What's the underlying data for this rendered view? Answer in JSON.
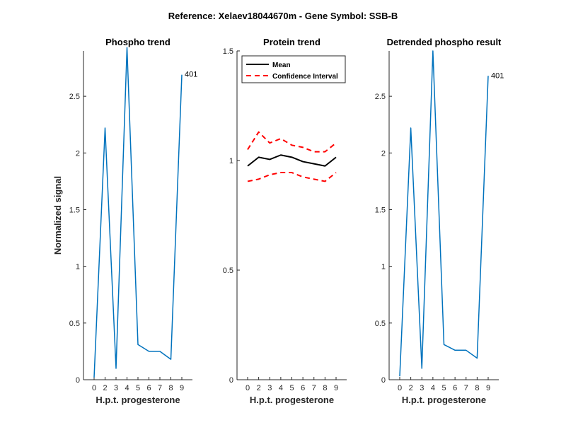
{
  "figure": {
    "suptitle": "Reference:  Xelaev18044670m - Gene Symbol:  SSB-B"
  },
  "chart_data": [
    {
      "type": "line",
      "title": "Phospho trend",
      "xlabel": "H.p.t. progesterone",
      "ylabel": "Normalized signal",
      "xticklabels": [
        "0",
        "2",
        "3",
        "4",
        "5",
        "6",
        "7",
        "8",
        "9"
      ],
      "yticks": [
        0,
        0.5,
        1,
        1.5,
        2,
        2.5
      ],
      "yticklabels": [
        "0",
        "0.5",
        "1",
        "1.5",
        "2",
        "2.5"
      ],
      "ylim": [
        0,
        2.9
      ],
      "grid": false,
      "series": [
        {
          "color": "#0072BD",
          "dash": "",
          "values": [
            0.02,
            2.22,
            0.1,
            2.93,
            0.31,
            0.25,
            0.25,
            0.18,
            2.69
          ]
        }
      ],
      "annotation": {
        "text": "401",
        "index": 8
      }
    },
    {
      "type": "line",
      "title": "Protein trend",
      "xlabel": "H.p.t. progesterone",
      "ylabel": "",
      "xticklabels": [
        "0",
        "2",
        "3",
        "4",
        "5",
        "6",
        "7",
        "8",
        "9"
      ],
      "yticks": [
        0,
        0.5,
        1,
        1.5
      ],
      "yticklabels": [
        "0",
        "0.5",
        "1",
        "1.5"
      ],
      "ylim": [
        0,
        1.5
      ],
      "grid": false,
      "legend_position": "top-left",
      "series": [
        {
          "name": "Mean",
          "color": "#000000",
          "dash": "",
          "values": [
            0.975,
            1.015,
            1.005,
            1.025,
            1.015,
            0.995,
            0.985,
            0.975,
            1.015
          ]
        },
        {
          "name": "Confidence Interval",
          "color": "#FF0000",
          "dash": "7 5",
          "values": [
            1.05,
            1.13,
            1.08,
            1.1,
            1.07,
            1.06,
            1.04,
            1.04,
            1.08
          ]
        },
        {
          "name": "",
          "color": "#FF0000",
          "dash": "7 5",
          "values": [
            0.905,
            0.915,
            0.935,
            0.945,
            0.945,
            0.925,
            0.915,
            0.905,
            0.945
          ]
        }
      ]
    },
    {
      "type": "line",
      "title": "Detrended phospho result",
      "xlabel": "H.p.t. progesterone",
      "ylabel": "",
      "xticklabels": [
        "0",
        "2",
        "3",
        "4",
        "5",
        "6",
        "7",
        "8",
        "9"
      ],
      "yticks": [
        0,
        0.5,
        1,
        1.5,
        2,
        2.5
      ],
      "yticklabels": [
        "0",
        "0.5",
        "1",
        "1.5",
        "2",
        "2.5"
      ],
      "ylim": [
        0,
        2.9
      ],
      "grid": false,
      "series": [
        {
          "color": "#0072BD",
          "dash": "",
          "values": [
            0.03,
            2.22,
            0.1,
            2.9,
            0.31,
            0.26,
            0.26,
            0.19,
            2.68
          ]
        }
      ],
      "annotation": {
        "text": "401",
        "index": 8
      }
    }
  ]
}
